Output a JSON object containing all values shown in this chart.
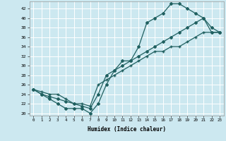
{
  "xlabel": "Humidex (Indice chaleur)",
  "ylabel": "",
  "xlim": [
    -0.5,
    23.5
  ],
  "ylim": [
    19.5,
    43.5
  ],
  "bg_color": "#cce8f0",
  "grid_color": "#ffffff",
  "line_color": "#206060",
  "line1_x": [
    0,
    1,
    2,
    3,
    4,
    5,
    6,
    7,
    8,
    9,
    10,
    11,
    12,
    13,
    14,
    15,
    16,
    17,
    18,
    19,
    20,
    21,
    22,
    23
  ],
  "line1_y": [
    25,
    24,
    23,
    22,
    21,
    21,
    21,
    20,
    22,
    26,
    29,
    31,
    31,
    34,
    39,
    40,
    41,
    43,
    43,
    42,
    41,
    40,
    37,
    37
  ],
  "line2_x": [
    0,
    1,
    2,
    3,
    4,
    5,
    6,
    7,
    8,
    9,
    10,
    11,
    12,
    13,
    14,
    15,
    16,
    17,
    18,
    19,
    20,
    21,
    22,
    23
  ],
  "line2_y": [
    25,
    24,
    23.5,
    23,
    22.5,
    22,
    21.5,
    21,
    24,
    28,
    29,
    30,
    31,
    32,
    33,
    34,
    35,
    36,
    37,
    38,
    39,
    40,
    38,
    37
  ],
  "line3_x": [
    0,
    1,
    2,
    3,
    4,
    5,
    6,
    7,
    8,
    9,
    10,
    11,
    12,
    13,
    14,
    15,
    16,
    17,
    18,
    19,
    20,
    21,
    22,
    23
  ],
  "line3_y": [
    25,
    24.5,
    24,
    24,
    23,
    22,
    22,
    21.5,
    26,
    27,
    28,
    29,
    30,
    31,
    32,
    33,
    33,
    34,
    34,
    35,
    36,
    37,
    37,
    37
  ],
  "yticks": [
    20,
    22,
    24,
    26,
    28,
    30,
    32,
    34,
    36,
    38,
    40,
    42
  ],
  "xticks": [
    0,
    1,
    2,
    3,
    4,
    5,
    6,
    7,
    8,
    9,
    10,
    11,
    12,
    13,
    14,
    15,
    16,
    17,
    18,
    19,
    20,
    21,
    22,
    23
  ]
}
